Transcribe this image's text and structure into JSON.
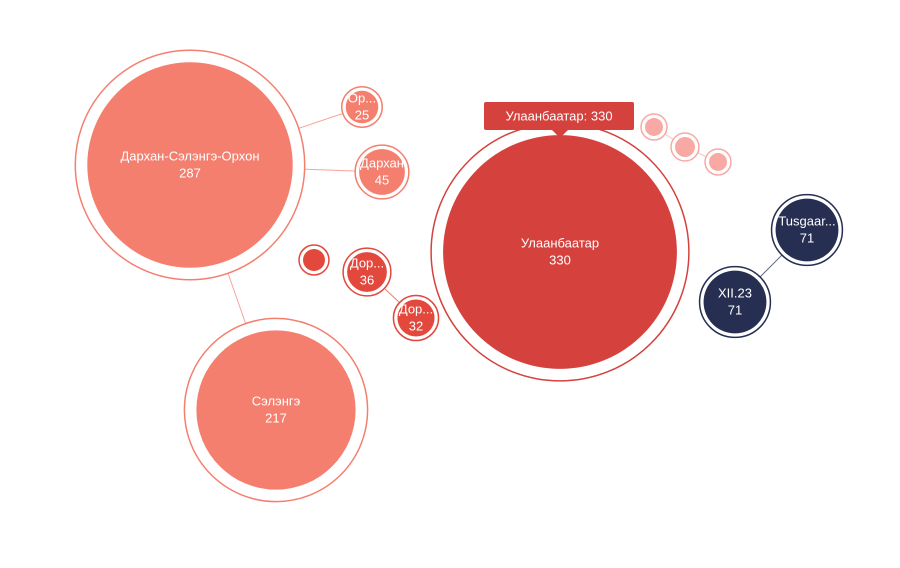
{
  "chart_data": {
    "type": "bubble",
    "nodes": [
      {
        "label": "Дархан-Сэлэнгэ-Орхон",
        "value": 287,
        "color": "#f47f6f"
      },
      {
        "label": "Ор...",
        "value": 25,
        "color": "#f47f6f"
      },
      {
        "label": "Дархан",
        "value": 45,
        "color": "#f47f6f"
      },
      {
        "label": "Сэлэнгэ",
        "value": 217,
        "color": "#f47f6f"
      },
      {
        "label": "Улаанбаатар",
        "value": 330,
        "color": "#d5413c"
      },
      {
        "label": "Дор...",
        "value": 36,
        "color": "#e2483c"
      },
      {
        "label": "Дор...",
        "value": 32,
        "color": "#e2483c"
      },
      {
        "label": "Tusgaar...",
        "value": 71,
        "color": "#262f52"
      },
      {
        "label": "XII.23",
        "value": 71,
        "color": "#262f52"
      },
      {
        "label": null,
        "value": 9,
        "color": "#e2483c"
      },
      {
        "label": null,
        "value": 3,
        "color": "#f8a9a4"
      },
      {
        "label": null,
        "value": 6,
        "color": "#f8a9a4"
      },
      {
        "label": null,
        "value": 3,
        "color": "#f8a9a4"
      }
    ],
    "links": [
      [
        0,
        1
      ],
      [
        0,
        2
      ],
      [
        0,
        3
      ],
      [
        5,
        6
      ],
      [
        7,
        8
      ],
      [
        10,
        11
      ],
      [
        11,
        12
      ]
    ],
    "tooltip": "Улаанбаатар: 330"
  }
}
